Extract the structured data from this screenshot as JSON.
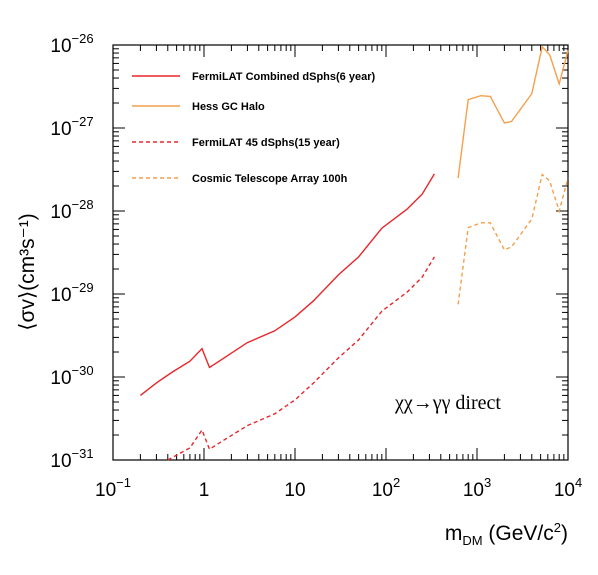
{
  "chart_data": {
    "type": "line",
    "title": "",
    "xlabel": {
      "base": "m",
      "sub": "DM",
      "unit_pre": " (GeV/c",
      "unit_sup": "2",
      "unit_post": ")"
    },
    "ylabel": {
      "text": "⟨σv⟩(cm³s⁻¹)"
    },
    "x_scale": "log",
    "y_scale": "log",
    "xlim": [
      0.1,
      10000
    ],
    "ylim": [
      1e-31,
      1e-26
    ],
    "x_ticks": [
      {
        "value": 0.1,
        "base": "10",
        "exp": "−1"
      },
      {
        "value": 1,
        "base": "1",
        "exp": ""
      },
      {
        "value": 10,
        "base": "10",
        "exp": ""
      },
      {
        "value": 100,
        "base": "10",
        "exp": "2"
      },
      {
        "value": 1000,
        "base": "10",
        "exp": "3"
      },
      {
        "value": 10000,
        "base": "10",
        "exp": "4"
      }
    ],
    "y_ticks": [
      {
        "value": 1e-31,
        "base": "10",
        "exp": "−31"
      },
      {
        "value": 1e-30,
        "base": "10",
        "exp": "−30"
      },
      {
        "value": 1e-29,
        "base": "10",
        "exp": "−29"
      },
      {
        "value": 1e-28,
        "base": "10",
        "exp": "−28"
      },
      {
        "value": 1e-27,
        "base": "10",
        "exp": "−27"
      },
      {
        "value": 1e-26,
        "base": "10",
        "exp": "−26"
      }
    ],
    "grid": false,
    "legend_position": "top-left",
    "annotation": "χχ→γγ direct",
    "series": [
      {
        "name": "FermiLAT Combined dSphs(6 year)",
        "color": "#e8262a",
        "dash": "solid",
        "points": [
          [
            0.2,
            6e-31
          ],
          [
            0.3,
            8.5e-31
          ],
          [
            0.45,
            1.15e-30
          ],
          [
            0.7,
            1.55e-30
          ],
          [
            0.95,
            2.2e-30
          ],
          [
            1.15,
            1.3e-30
          ],
          [
            1.6,
            1.65e-30
          ],
          [
            3,
            2.6e-30
          ],
          [
            6,
            3.6e-30
          ],
          [
            10,
            5.3e-30
          ],
          [
            16,
            8.3e-30
          ],
          [
            30,
            1.7e-29
          ],
          [
            50,
            2.8e-29
          ],
          [
            90,
            6.2e-29
          ],
          [
            170,
            1.05e-28
          ],
          [
            250,
            1.6e-28
          ],
          [
            340,
            2.8e-28
          ]
        ]
      },
      {
        "name": "Hess GC Halo",
        "color": "#f4a04e",
        "dash": "solid",
        "points": [
          [
            620,
            2.5e-28
          ],
          [
            800,
            2.2e-27
          ],
          [
            1100,
            2.45e-27
          ],
          [
            1400,
            2.4e-27
          ],
          [
            2000,
            1.15e-27
          ],
          [
            2400,
            1.2e-27
          ],
          [
            4000,
            2.6e-27
          ],
          [
            5200,
            9.5e-27
          ],
          [
            6300,
            7.6e-27
          ],
          [
            8000,
            3.4e-27
          ],
          [
            10000,
            8.6e-27
          ]
        ]
      },
      {
        "name": "FermiLAT 45 dSphs(15 year)",
        "color": "#e8262a",
        "dash": "dashed",
        "points": [
          [
            0.4,
            1e-31
          ],
          [
            0.7,
            1.4e-31
          ],
          [
            0.95,
            2.3e-31
          ],
          [
            1.15,
            1.35e-31
          ],
          [
            1.6,
            1.7e-31
          ],
          [
            3,
            2.6e-31
          ],
          [
            6,
            3.6e-31
          ],
          [
            10,
            5.3e-31
          ],
          [
            16,
            8.5e-31
          ],
          [
            30,
            1.7e-30
          ],
          [
            50,
            2.8e-30
          ],
          [
            90,
            6.2e-30
          ],
          [
            170,
            1.05e-29
          ],
          [
            250,
            1.6e-29
          ],
          [
            340,
            2.8e-29
          ]
        ]
      },
      {
        "name": "Cosmic Telescope Array 100h",
        "color": "#f4a04e",
        "dash": "dashed",
        "points": [
          [
            620,
            7.5e-30
          ],
          [
            800,
            6.3e-29
          ],
          [
            1100,
            7.2e-29
          ],
          [
            1400,
            7.2e-29
          ],
          [
            2000,
            3.4e-29
          ],
          [
            2400,
            3.7e-29
          ],
          [
            4000,
            8e-29
          ],
          [
            5200,
            2.75e-28
          ],
          [
            6300,
            2.3e-28
          ],
          [
            8000,
            1e-28
          ],
          [
            10000,
            2.5e-28
          ]
        ]
      }
    ]
  }
}
